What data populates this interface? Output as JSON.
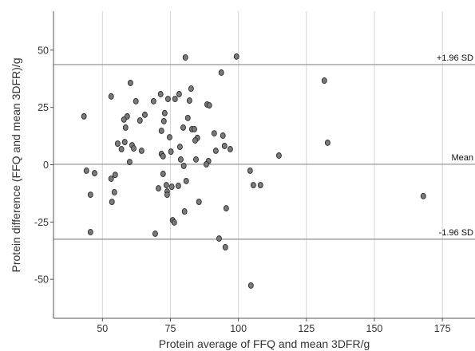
{
  "chart_data": {
    "type": "scatter",
    "xlabel": "Protein average of FFQ and mean 3DFR/g",
    "ylabel": "Protein difference (FFQ and mean 3DFR)/g",
    "xlim": [
      32,
      187
    ],
    "ylim": [
      -67,
      67
    ],
    "xticks": [
      50,
      75,
      100,
      125,
      150,
      175
    ],
    "yticks": [
      50,
      25,
      0,
      -25,
      -50
    ],
    "grid": "vertical",
    "reference_lines": [
      {
        "label": "+1.96 SD",
        "y": 43.7
      },
      {
        "label": "Mean",
        "y": 0.2
      },
      {
        "label": "-1.96 SD",
        "y": -32.5
      }
    ],
    "points": [
      [
        80.5,
        46.8
      ],
      [
        99.3,
        47.2
      ],
      [
        93.7,
        40.2
      ],
      [
        131.6,
        36.7
      ],
      [
        60.3,
        35.7
      ],
      [
        82.6,
        33.2
      ],
      [
        71.4,
        30.8
      ],
      [
        78.2,
        30.8
      ],
      [
        53.2,
        29.8
      ],
      [
        74.1,
        28.7
      ],
      [
        76.7,
        28.7
      ],
      [
        82.0,
        28.0
      ],
      [
        68.8,
        27.7
      ],
      [
        62.3,
        27.7
      ],
      [
        88.5,
        26.3
      ],
      [
        89.3,
        25.9
      ],
      [
        43.2,
        21.1
      ],
      [
        59.1,
        21.1
      ],
      [
        57.9,
        19.7
      ],
      [
        63.8,
        19.3
      ],
      [
        72.9,
        22.5
      ],
      [
        65.6,
        21.8
      ],
      [
        81.4,
        20.4
      ],
      [
        72.6,
        19.0
      ],
      [
        58.5,
        16.2
      ],
      [
        79.7,
        16.2
      ],
      [
        82.9,
        15.5
      ],
      [
        83.8,
        15.5
      ],
      [
        71.7,
        14.8
      ],
      [
        91.1,
        13.7
      ],
      [
        94.3,
        12.7
      ],
      [
        74.7,
        12.0
      ],
      [
        84.9,
        11.7
      ],
      [
        84.1,
        10.6
      ],
      [
        58.2,
        9.9
      ],
      [
        55.6,
        9.2
      ],
      [
        132.8,
        9.6
      ],
      [
        60.9,
        8.5
      ],
      [
        94.9,
        8.2
      ],
      [
        78.5,
        7.8
      ],
      [
        57.0,
        6.8
      ],
      [
        61.5,
        7.1
      ],
      [
        97.0,
        6.8
      ],
      [
        75.2,
        5.7
      ],
      [
        91.7,
        6.1
      ],
      [
        64.4,
        6.1
      ],
      [
        71.7,
        4.7
      ],
      [
        72.3,
        3.7
      ],
      [
        114.9,
        4.0
      ],
      [
        84.4,
        2.3
      ],
      [
        78.8,
        2.3
      ],
      [
        60.0,
        1.2
      ],
      [
        89.0,
        1.6
      ],
      [
        88.2,
        0.2
      ],
      [
        79.9,
        -0.5
      ],
      [
        44.1,
        -2.6
      ],
      [
        104.3,
        -2.6
      ],
      [
        47.1,
        -3.7
      ],
      [
        72.3,
        -4.0
      ],
      [
        54.7,
        -4.4
      ],
      [
        53.2,
        -6.1
      ],
      [
        80.8,
        -7.1
      ],
      [
        73.5,
        -8.9
      ],
      [
        105.5,
        -8.9
      ],
      [
        108.1,
        -8.9
      ],
      [
        77.9,
        -9.2
      ],
      [
        75.5,
        -9.6
      ],
      [
        70.6,
        -10.3
      ],
      [
        73.8,
        -11.7
      ],
      [
        54.4,
        -12.0
      ],
      [
        45.6,
        -13.1
      ],
      [
        73.8,
        -13.1
      ],
      [
        168.0,
        -13.7
      ],
      [
        53.5,
        -16.2
      ],
      [
        85.5,
        -16.2
      ],
      [
        95.5,
        -19.0
      ],
      [
        80.2,
        -20.4
      ],
      [
        75.8,
        -24.2
      ],
      [
        76.4,
        -25.2
      ],
      [
        45.6,
        -29.4
      ],
      [
        69.4,
        -30.1
      ],
      [
        92.9,
        -32.2
      ],
      [
        95.2,
        -36.0
      ],
      [
        104.6,
        -52.7
      ]
    ]
  },
  "colors": {
    "point_fill": "#7a7a7a",
    "point_stroke": "#2b2b2b",
    "reference_line": "#8c8c8c",
    "gridline": "#d6d6d6",
    "axis": "#555555",
    "background": "#ffffff"
  }
}
